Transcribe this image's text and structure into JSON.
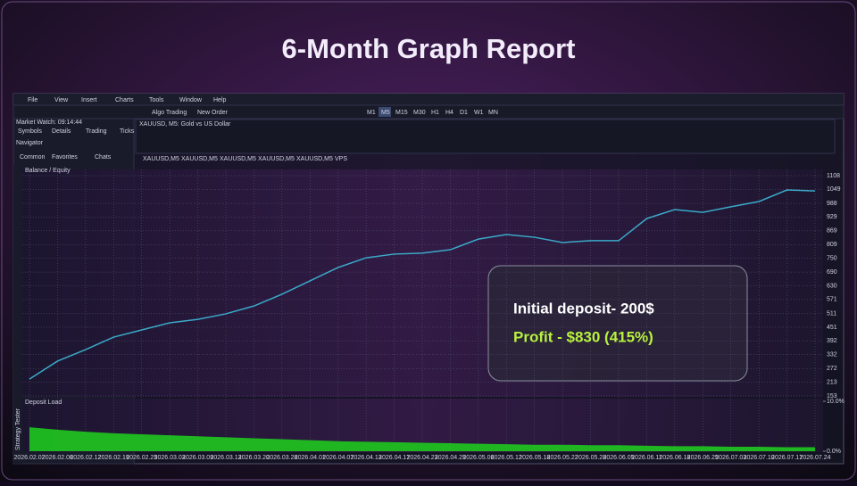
{
  "title": "6-Month Graph Report",
  "menu": [
    "File",
    "View",
    "Insert",
    "Charts",
    "Tools",
    "Window",
    "Help"
  ],
  "toolbar": {
    "algo": "Algo Trading",
    "order": "New Order",
    "timeframes": [
      "M1",
      "M5",
      "M15",
      "M30",
      "H1",
      "H4",
      "D1",
      "W1",
      "MN"
    ]
  },
  "left_panel": {
    "market_watch": "Market Watch: 09:14:44",
    "tabs": [
      "Symbols",
      "Details",
      "Trading",
      "Ticks"
    ],
    "navigator": "Navigator",
    "nav_tabs": [
      "Common",
      "Favorites",
      "Chats"
    ]
  },
  "mini_chart": {
    "label": "XAUUSD, M5: Gold vs US Dollar"
  },
  "chart_tabs": [
    "XAUUSD,M5",
    "XAUUSD,M5",
    "XAUUSD,M5",
    "XAUUSD,M5",
    "XAUUSD,M5",
    "VPS"
  ],
  "side_label": "Strategy Tester",
  "chart": {
    "type": "line",
    "label": "Balance / Equity",
    "categories": [
      "2026.02.02",
      "2026.02.06",
      "2026.02.12",
      "2026.02.19",
      "2026.02.25",
      "2026.03.03",
      "2026.03.09",
      "2026.03.13",
      "2026.03.20",
      "2026.03.26",
      "2026.04.01",
      "2026.04.07",
      "2026.04.13",
      "2026.04.17",
      "2026.04.23",
      "2026.04.29",
      "2026.05.06",
      "2026.05.12",
      "2026.05.18",
      "2026.05.22",
      "2026.05.28",
      "2026.06.05",
      "2026.06.11",
      "2026.06.18",
      "2026.06.25",
      "2026.07.03",
      "2026.07.10",
      "2026.07.17",
      "2026.07.24"
    ],
    "series": [
      {
        "name": "Balance",
        "color": "#3ba9c9",
        "values": [
          226,
          304,
          354,
          408,
          439,
          470,
          485,
          509,
          543,
          594,
          652,
          710,
          752,
          768,
          772,
          787,
          833,
          853,
          841,
          818,
          826,
          826,
          922,
          961,
          949,
          973,
          996,
          1046,
          1042
        ]
      }
    ],
    "ylim": [
      153,
      1108
    ],
    "yticks": [
      153,
      213,
      272,
      332,
      392,
      451,
      511,
      571,
      630,
      690,
      750,
      809,
      869,
      929,
      988,
      1049,
      1108
    ],
    "grid": true,
    "deposit_load": {
      "label": "Deposit Load",
      "color": "#1fc81f",
      "values": [
        4.8,
        4.3,
        3.9,
        3.6,
        3.4,
        3.2,
        3.0,
        2.8,
        2.6,
        2.4,
        2.2,
        2.0,
        1.9,
        1.8,
        1.7,
        1.6,
        1.5,
        1.4,
        1.3,
        1.3,
        1.2,
        1.2,
        1.1,
        1.0,
        1.0,
        0.9,
        0.9,
        0.8,
        0.8
      ],
      "ylim": [
        0,
        10
      ],
      "yticks": [
        {
          "value": 10,
          "label": "10.0%"
        },
        {
          "value": 0,
          "label": "0.0%"
        }
      ]
    }
  },
  "info": {
    "deposit": "Initial deposit- 200$",
    "profit": "Profit - $830 (415%)"
  }
}
